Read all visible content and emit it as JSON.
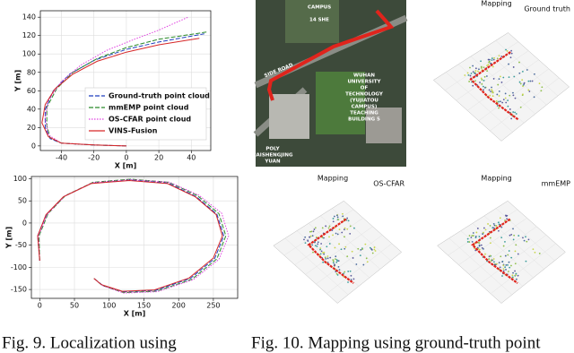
{
  "chart_data": [
    {
      "type": "line",
      "xlabel": "X [m]",
      "ylabel": "Y [m]",
      "xlim": [
        -53,
        52
      ],
      "ylim": [
        -5,
        147
      ],
      "xticks": [
        -40,
        -20,
        0,
        20,
        40
      ],
      "yticks": [
        0,
        20,
        40,
        60,
        80,
        100,
        120,
        140
      ],
      "grid": true,
      "legend": "center right",
      "series": [
        {
          "name": "Ground-truth point cloud",
          "color": "#1f3fbf",
          "style": "dashed",
          "x": [
            0,
            -20,
            -40,
            -47,
            -50,
            -50,
            -45,
            -35,
            -20,
            0,
            20,
            48
          ],
          "values": [
            0,
            1,
            3,
            8,
            20,
            40,
            60,
            78,
            93,
            105,
            113,
            122
          ]
        },
        {
          "name": "mmEMP point cloud",
          "color": "#2a8a2a",
          "style": "dashed",
          "x": [
            0,
            -20,
            -40,
            -47,
            -49,
            -49,
            -43,
            -33,
            -18,
            0,
            20,
            50
          ],
          "values": [
            0,
            1,
            3,
            9,
            22,
            42,
            62,
            80,
            95,
            107,
            116,
            124
          ]
        },
        {
          "name": "OS-CFAR point cloud",
          "color": "#e040e0",
          "style": "dotted",
          "x": [
            0,
            -20,
            -40,
            -48,
            -50,
            -48,
            -40,
            -28,
            -12,
            5,
            20,
            38
          ],
          "values": [
            0,
            1,
            3,
            12,
            30,
            50,
            70,
            88,
            104,
            116,
            126,
            140
          ]
        },
        {
          "name": "VINS-Fusion",
          "color": "#d62728",
          "style": "solid",
          "x": [
            0,
            -20,
            -40,
            -48,
            -52,
            -50,
            -44,
            -33,
            -18,
            0,
            20,
            45
          ],
          "values": [
            0,
            1,
            3,
            10,
            25,
            45,
            62,
            78,
            92,
            102,
            110,
            117
          ]
        }
      ]
    },
    {
      "type": "line",
      "xlabel": "X [m]",
      "ylabel": "Y [m]",
      "xlim": [
        -12,
        285
      ],
      "ylim": [
        -170,
        105
      ],
      "xticks": [
        0,
        50,
        100,
        150,
        200,
        250
      ],
      "yticks": [
        -150,
        -100,
        -50,
        0,
        50,
        100
      ],
      "grid": true,
      "series": [
        {
          "color": "#1f3fbf",
          "style": "dashed",
          "x": [
            0,
            -3,
            10,
            35,
            75,
            130,
            185,
            225,
            255,
            265,
            252,
            217,
            167,
            120,
            90,
            78
          ],
          "values": [
            -85,
            -29,
            20,
            60,
            90,
            97,
            90,
            60,
            20,
            -29,
            -80,
            -125,
            -152,
            -155,
            -140,
            -125
          ]
        },
        {
          "color": "#2a8a2a",
          "style": "dashed",
          "x": [
            0,
            -1,
            12,
            37,
            77,
            131,
            186,
            227,
            258,
            268,
            255,
            219,
            168,
            121,
            90,
            78
          ],
          "values": [
            -85,
            -29,
            21,
            62,
            92,
            99,
            92,
            62,
            21,
            -29,
            -81,
            -127,
            -154,
            -157,
            -141,
            -125
          ]
        },
        {
          "color": "#e040e0",
          "style": "dotted",
          "x": [
            0,
            -2,
            11,
            36,
            76,
            131,
            187,
            229,
            262,
            272,
            258,
            221,
            169,
            121,
            90,
            78
          ],
          "values": [
            -85,
            -29,
            20,
            61,
            91,
            98,
            92,
            63,
            22,
            -29,
            -82,
            -128,
            -155,
            -158,
            -141,
            -125
          ]
        },
        {
          "color": "#d62728",
          "style": "solid",
          "x": [
            0,
            -3,
            9,
            34,
            74,
            129,
            184,
            224,
            254,
            263,
            250,
            215,
            165,
            119,
            89,
            78
          ],
          "values": [
            -85,
            -29,
            19,
            59,
            89,
            96,
            89,
            59,
            19,
            -29,
            -79,
            -124,
            -151,
            -154,
            -139,
            -125
          ]
        }
      ]
    }
  ],
  "map": {
    "labels": [
      "SIDE ROAD",
      "14 SHE",
      "CAMPUS"
    ],
    "building_label": [
      "WUHAN",
      "UNIVERSITY",
      "OF",
      "TECHNOLOGY",
      "(YUJIATOU",
      "CAMPUS)",
      "TEACHING",
      "BUILDING 5"
    ],
    "poi_label": [
      "POLY",
      "CAISHENGJING",
      "YUAN"
    ]
  },
  "panels": [
    {
      "title": "Ground truth",
      "plot_title": "Mapping"
    },
    {
      "title": "OS-CFAR",
      "plot_title": "Mapping"
    },
    {
      "title": "mmEMP",
      "plot_title": "Mapping"
    }
  ],
  "captions": [
    "Fig. 9.    Localization using",
    "Fig. 10.   Mapping using ground-truth point"
  ]
}
